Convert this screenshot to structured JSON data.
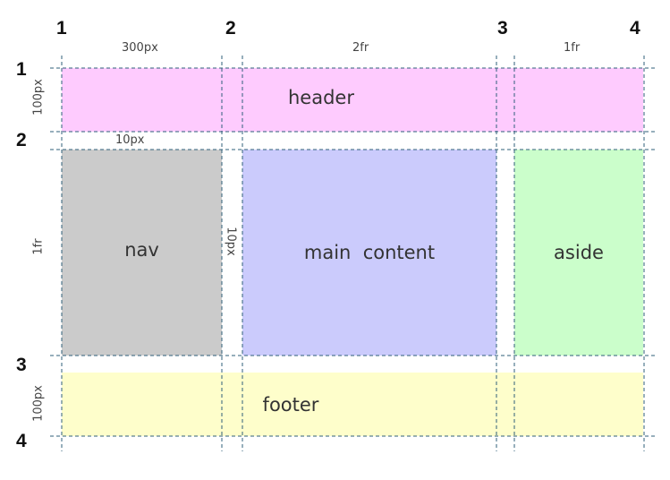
{
  "areas": {
    "header": "header",
    "nav": "nav",
    "main": "main  content",
    "aside": "aside",
    "footer": "footer"
  },
  "column_lines": [
    "1",
    "2",
    "3",
    "4"
  ],
  "row_lines": [
    "1",
    "2",
    "3",
    "4"
  ],
  "column_sizes": {
    "col1": "300px",
    "col2": "2fr",
    "col3": "1fr"
  },
  "row_sizes": {
    "row1": "100px",
    "row2": "1fr",
    "row3": "100px"
  },
  "gaps": {
    "row_gap": "10px",
    "column_gap": "10px"
  },
  "colors": {
    "header": "#fecbfe",
    "nav": "#cbcbcb",
    "main": "#cbcbfc",
    "aside": "#cbfecb",
    "footer": "#fefecb",
    "guide_line": "#2f5f7a"
  }
}
